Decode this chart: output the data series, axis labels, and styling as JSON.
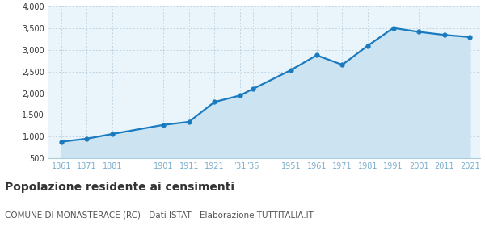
{
  "years": [
    1861,
    1871,
    1881,
    1901,
    1911,
    1921,
    1931,
    1936,
    1951,
    1961,
    1971,
    1981,
    1991,
    2001,
    2011,
    2021
  ],
  "population": [
    880,
    950,
    1060,
    1270,
    1340,
    1800,
    1950,
    2100,
    2540,
    2880,
    2660,
    3100,
    3510,
    3420,
    3350,
    3300
  ],
  "line_color": "#1a7abf",
  "fill_color": "#cce3f2",
  "marker_color": "#1a7abf",
  "bg_color": "#eaf4fb",
  "grid_color": "#b0c8d8",
  "axis_color": "#7aaecc",
  "title": "Popolazione residente ai censimenti",
  "subtitle": "COMUNE DI MONASTERACE (RC) - Dati ISTAT - Elaborazione TUTTITALIA.IT",
  "ylim": [
    500,
    4000
  ],
  "yticks": [
    500,
    1000,
    1500,
    2000,
    2500,
    3000,
    3500,
    4000
  ],
  "tick_labels_31_36": [
    "’31",
    "’36"
  ],
  "title_fontsize": 10,
  "subtitle_fontsize": 7.5
}
